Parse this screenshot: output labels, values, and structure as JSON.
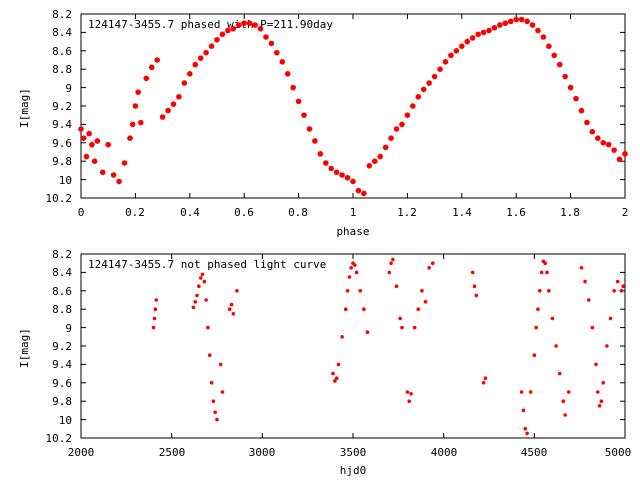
{
  "chart_data": [
    {
      "type": "scatter",
      "title": "124147-3455.7 phased with P=211.90day",
      "xlabel": "phase",
      "ylabel": "I[mag]",
      "xlim": [
        0,
        2
      ],
      "ylim": [
        8.2,
        10.2
      ],
      "y_inverted": true,
      "grid": false,
      "xticks": [
        "0",
        "0.2",
        "0.4",
        "0.6",
        "0.8",
        "1",
        "1.2",
        "1.4",
        "1.6",
        "1.8",
        "2"
      ],
      "yticks": [
        "8.2",
        "8.4",
        "8.6",
        "8.8",
        "9",
        "9.2",
        "9.4",
        "9.6",
        "9.8",
        "10",
        "10.2"
      ],
      "marker_color": "#ff0000",
      "points": [
        [
          0.0,
          9.45
        ],
        [
          0.01,
          9.55
        ],
        [
          0.02,
          9.75
        ],
        [
          0.03,
          9.5
        ],
        [
          0.04,
          9.62
        ],
        [
          0.05,
          9.8
        ],
        [
          0.06,
          9.58
        ],
        [
          0.08,
          9.92
        ],
        [
          0.1,
          9.62
        ],
        [
          0.12,
          9.95
        ],
        [
          0.14,
          10.02
        ],
        [
          0.16,
          9.82
        ],
        [
          0.18,
          9.55
        ],
        [
          0.19,
          9.4
        ],
        [
          0.2,
          9.2
        ],
        [
          0.21,
          9.05
        ],
        [
          0.22,
          9.38
        ],
        [
          0.24,
          8.9
        ],
        [
          0.26,
          8.78
        ],
        [
          0.28,
          8.7
        ],
        [
          0.3,
          9.32
        ],
        [
          0.32,
          9.25
        ],
        [
          0.34,
          9.18
        ],
        [
          0.36,
          9.1
        ],
        [
          0.38,
          8.95
        ],
        [
          0.4,
          8.85
        ],
        [
          0.42,
          8.75
        ],
        [
          0.44,
          8.68
        ],
        [
          0.46,
          8.62
        ],
        [
          0.48,
          8.55
        ],
        [
          0.5,
          8.48
        ],
        [
          0.52,
          8.42
        ],
        [
          0.54,
          8.38
        ],
        [
          0.56,
          8.36
        ],
        [
          0.58,
          8.32
        ],
        [
          0.6,
          8.3
        ],
        [
          0.62,
          8.3
        ],
        [
          0.64,
          8.32
        ],
        [
          0.66,
          8.36
        ],
        [
          0.68,
          8.45
        ],
        [
          0.7,
          8.52
        ],
        [
          0.72,
          8.62
        ],
        [
          0.74,
          8.72
        ],
        [
          0.76,
          8.85
        ],
        [
          0.78,
          9.0
        ],
        [
          0.8,
          9.15
        ],
        [
          0.82,
          9.3
        ],
        [
          0.84,
          9.45
        ],
        [
          0.86,
          9.58
        ],
        [
          0.88,
          9.72
        ],
        [
          0.9,
          9.82
        ],
        [
          0.92,
          9.88
        ],
        [
          0.94,
          9.92
        ],
        [
          0.96,
          9.95
        ],
        [
          0.98,
          9.98
        ],
        [
          1.0,
          10.02
        ],
        [
          1.02,
          10.12
        ],
        [
          1.04,
          10.15
        ],
        [
          1.06,
          9.85
        ],
        [
          1.08,
          9.8
        ],
        [
          1.1,
          9.75
        ],
        [
          1.12,
          9.65
        ],
        [
          1.14,
          9.55
        ],
        [
          1.16,
          9.45
        ],
        [
          1.18,
          9.4
        ],
        [
          1.2,
          9.3
        ],
        [
          1.22,
          9.2
        ],
        [
          1.24,
          9.1
        ],
        [
          1.26,
          9.02
        ],
        [
          1.28,
          8.95
        ],
        [
          1.3,
          8.88
        ],
        [
          1.32,
          8.8
        ],
        [
          1.34,
          8.72
        ],
        [
          1.36,
          8.65
        ],
        [
          1.38,
          8.6
        ],
        [
          1.4,
          8.55
        ],
        [
          1.42,
          8.5
        ],
        [
          1.44,
          8.46
        ],
        [
          1.46,
          8.42
        ],
        [
          1.48,
          8.4
        ],
        [
          1.5,
          8.38
        ],
        [
          1.52,
          8.35
        ],
        [
          1.54,
          8.32
        ],
        [
          1.56,
          8.3
        ],
        [
          1.58,
          8.28
        ],
        [
          1.6,
          8.26
        ],
        [
          1.62,
          8.26
        ],
        [
          1.64,
          8.28
        ],
        [
          1.66,
          8.32
        ],
        [
          1.68,
          8.38
        ],
        [
          1.7,
          8.45
        ],
        [
          1.72,
          8.55
        ],
        [
          1.74,
          8.65
        ],
        [
          1.76,
          8.75
        ],
        [
          1.78,
          8.88
        ],
        [
          1.8,
          9.0
        ],
        [
          1.82,
          9.12
        ],
        [
          1.84,
          9.25
        ],
        [
          1.86,
          9.38
        ],
        [
          1.88,
          9.48
        ],
        [
          1.9,
          9.55
        ],
        [
          1.92,
          9.6
        ],
        [
          1.94,
          9.62
        ],
        [
          1.96,
          9.68
        ],
        [
          1.98,
          9.78
        ],
        [
          2.0,
          9.72
        ]
      ]
    },
    {
      "type": "scatter",
      "title": "124147-3455.7 not phased light curve",
      "xlabel": "hjd0",
      "ylabel": "I[mag]",
      "xlim": [
        2000,
        5000
      ],
      "ylim": [
        8.2,
        10.2
      ],
      "y_inverted": true,
      "grid": false,
      "xticks": [
        "2000",
        "2500",
        "3000",
        "3500",
        "4000",
        "4500",
        "5000"
      ],
      "yticks": [
        "8.2",
        "8.4",
        "8.6",
        "8.8",
        "9",
        "9.2",
        "9.4",
        "9.6",
        "9.8",
        "10",
        "10.2"
      ],
      "marker_color": "#ff0000",
      "points": [
        [
          2400,
          9.0
        ],
        [
          2405,
          8.9
        ],
        [
          2410,
          8.8
        ],
        [
          2415,
          8.7
        ],
        [
          2620,
          8.78
        ],
        [
          2630,
          8.72
        ],
        [
          2640,
          8.65
        ],
        [
          2650,
          8.55
        ],
        [
          2660,
          8.46
        ],
        [
          2670,
          8.42
        ],
        [
          2680,
          8.5
        ],
        [
          2690,
          8.7
        ],
        [
          2700,
          9.0
        ],
        [
          2710,
          9.3
        ],
        [
          2720,
          9.6
        ],
        [
          2730,
          9.8
        ],
        [
          2740,
          9.92
        ],
        [
          2750,
          10.0
        ],
        [
          2770,
          9.4
        ],
        [
          2780,
          9.7
        ],
        [
          2820,
          8.8
        ],
        [
          2830,
          8.75
        ],
        [
          2840,
          8.85
        ],
        [
          2860,
          8.6
        ],
        [
          3390,
          9.5
        ],
        [
          3400,
          9.58
        ],
        [
          3410,
          9.55
        ],
        [
          3420,
          9.4
        ],
        [
          3440,
          9.1
        ],
        [
          3460,
          8.8
        ],
        [
          3470,
          8.6
        ],
        [
          3480,
          8.45
        ],
        [
          3490,
          8.35
        ],
        [
          3500,
          8.3
        ],
        [
          3510,
          8.32
        ],
        [
          3520,
          8.4
        ],
        [
          3540,
          8.6
        ],
        [
          3560,
          8.8
        ],
        [
          3580,
          9.05
        ],
        [
          3700,
          8.4
        ],
        [
          3710,
          8.3
        ],
        [
          3720,
          8.26
        ],
        [
          3740,
          8.55
        ],
        [
          3760,
          8.9
        ],
        [
          3770,
          9.0
        ],
        [
          3800,
          9.7
        ],
        [
          3810,
          9.8
        ],
        [
          3820,
          9.72
        ],
        [
          3840,
          9.0
        ],
        [
          3860,
          8.8
        ],
        [
          3880,
          8.6
        ],
        [
          3900,
          8.72
        ],
        [
          3920,
          8.35
        ],
        [
          3940,
          8.3
        ],
        [
          4160,
          8.4
        ],
        [
          4170,
          8.55
        ],
        [
          4180,
          8.65
        ],
        [
          4220,
          9.6
        ],
        [
          4230,
          9.55
        ],
        [
          4430,
          9.7
        ],
        [
          4440,
          9.9
        ],
        [
          4450,
          10.1
        ],
        [
          4460,
          10.15
        ],
        [
          4480,
          9.7
        ],
        [
          4500,
          9.3
        ],
        [
          4510,
          9.0
        ],
        [
          4520,
          8.8
        ],
        [
          4530,
          8.6
        ],
        [
          4540,
          8.4
        ],
        [
          4550,
          8.28
        ],
        [
          4560,
          8.3
        ],
        [
          4570,
          8.4
        ],
        [
          4580,
          8.6
        ],
        [
          4600,
          8.9
        ],
        [
          4620,
          9.2
        ],
        [
          4640,
          9.5
        ],
        [
          4660,
          9.8
        ],
        [
          4670,
          9.95
        ],
        [
          4690,
          9.7
        ],
        [
          4760,
          8.35
        ],
        [
          4780,
          8.5
        ],
        [
          4800,
          8.7
        ],
        [
          4820,
          9.0
        ],
        [
          4840,
          9.4
        ],
        [
          4850,
          9.7
        ],
        [
          4860,
          9.85
        ],
        [
          4870,
          9.8
        ],
        [
          4880,
          9.6
        ],
        [
          4900,
          9.2
        ],
        [
          4920,
          8.9
        ],
        [
          4940,
          8.6
        ],
        [
          4960,
          8.5
        ],
        [
          4980,
          8.6
        ],
        [
          4990,
          8.55
        ]
      ]
    }
  ]
}
